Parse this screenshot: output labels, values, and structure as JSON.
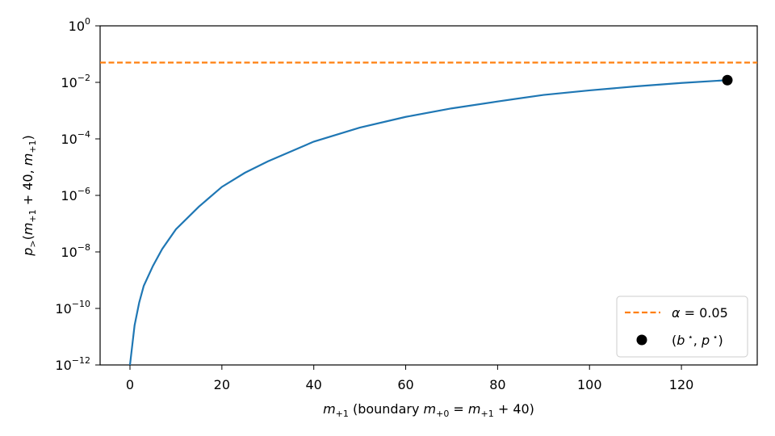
{
  "chart_data": {
    "type": "line",
    "xlabel": "m₊₁ (boundary m₊₀ = m₊₁ + 40)",
    "ylabel": "p>(m₊₁ + 40, m₊₁)",
    "xlim": [
      -6.5,
      136.5
    ],
    "ylim": [
      1e-12,
      1
    ],
    "yscale": "log",
    "x_ticks": [
      0,
      20,
      40,
      60,
      80,
      100,
      120
    ],
    "y_ticks": [
      {
        "base": "10",
        "exp": "0",
        "value": 1
      },
      {
        "base": "10",
        "exp": "−2",
        "value": 0.01
      },
      {
        "base": "10",
        "exp": "−4",
        "value": 0.0001
      },
      {
        "base": "10",
        "exp": "−6",
        "value": 1e-06
      },
      {
        "base": "10",
        "exp": "−8",
        "value": 1e-08
      },
      {
        "base": "10",
        "exp": "−10",
        "value": 1e-10
      },
      {
        "base": "10",
        "exp": "−12",
        "value": 1e-12
      }
    ],
    "series": [
      {
        "name": "",
        "color": "#1f77b4",
        "x": [
          0,
          1,
          2,
          3,
          5,
          7,
          10,
          15,
          20,
          25,
          30,
          40,
          50,
          60,
          70,
          80,
          90,
          100,
          110,
          120,
          130
        ],
        "y": [
          1e-12,
          2.5e-11,
          1.6e-10,
          6.3e-10,
          3.2e-09,
          1.26e-08,
          6.3e-08,
          4e-07,
          2e-06,
          6.3e-06,
          1.6e-05,
          8e-05,
          0.00025,
          0.0006,
          0.0012,
          0.0021,
          0.0036,
          0.0052,
          0.0072,
          0.0095,
          0.012
        ]
      }
    ],
    "hline": {
      "name": "α = 0.05",
      "y": 0.05,
      "color": "#ff7f0e",
      "style": "dashed"
    },
    "marker": {
      "name": "(b⋆, p⋆)",
      "x": 130,
      "y": 0.012,
      "color": "#000000"
    },
    "legend": {
      "placement": "lower-right",
      "entries": [
        "α = 0.05",
        "(b⋆, p⋆)"
      ]
    },
    "grid": false
  }
}
